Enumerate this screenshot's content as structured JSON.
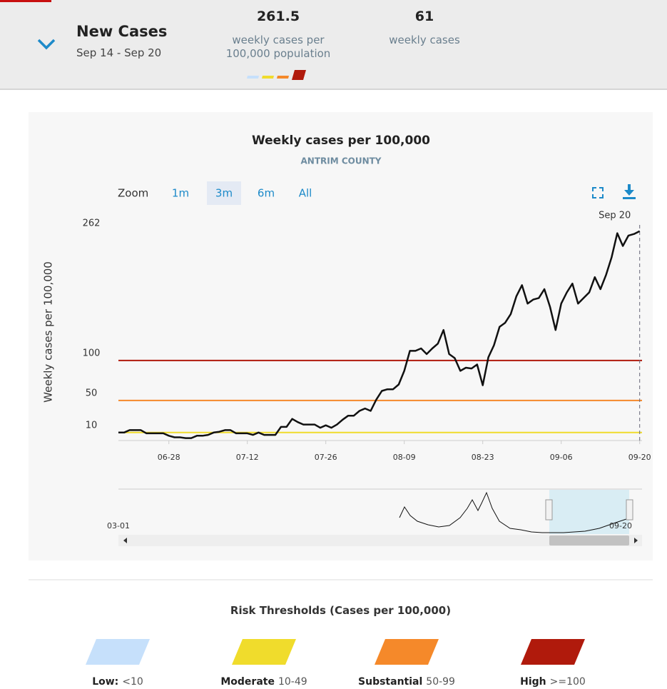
{
  "header": {
    "title": "New Cases",
    "date_range": "Sep 14 - Sep 20",
    "rate": 261.5,
    "rate_label": "weekly cases per 100,000 population",
    "count": 61,
    "count_label": "weekly cases"
  },
  "zoom": {
    "label": "Zoom",
    "options": [
      "1m",
      "3m",
      "6m",
      "All"
    ],
    "selected": 1
  },
  "chart_data": {
    "type": "line",
    "title": "Weekly cases per 100,000",
    "subtitle": "ANTRIM COUNTY",
    "y_label": "Weekly cases per 100,000",
    "color": "#111111",
    "x": [
      "06-19",
      "06-20",
      "06-21",
      "06-22",
      "06-23",
      "06-24",
      "06-25",
      "06-26",
      "06-27",
      "06-28",
      "06-29",
      "06-30",
      "07-01",
      "07-02",
      "07-03",
      "07-04",
      "07-05",
      "07-06",
      "07-07",
      "07-08",
      "07-09",
      "07-10",
      "07-11",
      "07-12",
      "07-13",
      "07-14",
      "07-15",
      "07-16",
      "07-17",
      "07-18",
      "07-19",
      "07-20",
      "07-21",
      "07-22",
      "07-23",
      "07-24",
      "07-25",
      "07-26",
      "07-27",
      "07-28",
      "07-29",
      "07-30",
      "07-31",
      "08-01",
      "08-02",
      "08-03",
      "08-04",
      "08-05",
      "08-06",
      "08-07",
      "08-08",
      "08-09",
      "08-10",
      "08-11",
      "08-12",
      "08-13",
      "08-14",
      "08-15",
      "08-16",
      "08-17",
      "08-18",
      "08-19",
      "08-20",
      "08-21",
      "08-22",
      "08-23",
      "08-24",
      "08-25",
      "08-26",
      "08-27",
      "08-28",
      "08-29",
      "08-30",
      "08-31",
      "09-01",
      "09-02",
      "09-03",
      "09-04",
      "09-05",
      "09-06",
      "09-07",
      "09-08",
      "09-09",
      "09-10",
      "09-11",
      "09-12",
      "09-13",
      "09-14",
      "09-15",
      "09-16",
      "09-17",
      "09-18",
      "09-19",
      "09-20"
    ],
    "values": [
      10,
      10,
      13,
      13,
      13,
      9,
      9,
      9,
      9,
      6,
      4,
      4,
      3,
      3,
      6,
      6,
      7,
      10,
      11,
      13,
      13,
      9,
      9,
      9,
      7,
      10,
      7,
      7,
      7,
      17,
      17,
      27,
      23,
      20,
      20,
      20,
      16,
      19,
      16,
      20,
      26,
      31,
      31,
      37,
      40,
      37,
      51,
      62,
      64,
      64,
      70,
      87,
      112,
      112,
      115,
      108,
      115,
      121,
      138,
      108,
      103,
      87,
      91,
      90,
      95,
      69,
      104,
      119,
      142,
      147,
      158,
      180,
      194,
      171,
      176,
      178,
      189,
      167,
      138,
      171,
      185,
      196,
      171,
      178,
      185,
      204,
      189,
      207,
      229,
      259,
      243,
      256,
      258,
      261.5
    ],
    "xticks": [
      "06-28",
      "07-12",
      "07-26",
      "08-09",
      "08-23",
      "09-06",
      "09-20"
    ],
    "ylim": [
      0,
      280
    ],
    "yticks": [
      10,
      50,
      100,
      262
    ],
    "thresholds": [
      {
        "value": 10,
        "color": "#f0dc2c"
      },
      {
        "value": 50,
        "color": "#f5892a"
      },
      {
        "value": 100,
        "color": "#b01a0c"
      }
    ],
    "crosshair": {
      "x": "09-20",
      "label": "Sep 20"
    },
    "navigator": {
      "start_label": "03-01",
      "end_label": "09-20"
    }
  },
  "risk": {
    "title": "Risk Thresholds (Cases per 100,000)",
    "levels": [
      {
        "name": "Low:",
        "range": "<10",
        "color": "#c6e0fb"
      },
      {
        "name": "Moderate",
        "range": "10-49",
        "color": "#f0dc2c"
      },
      {
        "name": "Substantial",
        "range": "50-99",
        "color": "#f5892a"
      },
      {
        "name": "High",
        "range": ">=100",
        "color": "#b01a0c"
      }
    ]
  }
}
